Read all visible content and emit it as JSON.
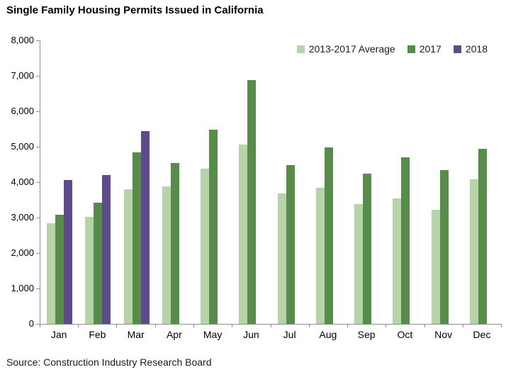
{
  "title": "Single Family Housing Permits Issued in California",
  "source_note": "Source: Construction Industry Research Board",
  "colors": {
    "axis": "#8F8F8F",
    "series_average": "#B5D5A9",
    "series_2017": "#588C4A",
    "series_2018": "#5E4B8B"
  },
  "chart_data": {
    "type": "bar",
    "title": "Single Family Housing Permits Issued in California",
    "categories": [
      "Jan",
      "Feb",
      "Mar",
      "Apr",
      "May",
      "Jun",
      "Jul",
      "Aug",
      "Sep",
      "Oct",
      "Nov",
      "Dec"
    ],
    "series": [
      {
        "name": "2013-2017 Average",
        "color": "#B5D5A9",
        "values": [
          2850,
          3030,
          3810,
          3880,
          4380,
          5060,
          3690,
          3850,
          3380,
          3550,
          3230,
          4080
        ]
      },
      {
        "name": "2017",
        "color": "#588C4A",
        "values": [
          3090,
          3430,
          4850,
          4540,
          5480,
          6880,
          4480,
          4980,
          4240,
          4700,
          4350,
          4940
        ]
      },
      {
        "name": "2018",
        "color": "#5E4B8B",
        "values": [
          4060,
          4210,
          5450,
          null,
          null,
          null,
          null,
          null,
          null,
          null,
          null,
          null
        ]
      }
    ],
    "xlabel": "",
    "ylabel": "",
    "ylim": [
      0,
      8000
    ],
    "yticks": [
      {
        "value": 0,
        "label": "0"
      },
      {
        "value": 1000,
        "label": "1,000"
      },
      {
        "value": 2000,
        "label": "2,000"
      },
      {
        "value": 3000,
        "label": "3,000"
      },
      {
        "value": 4000,
        "label": "4,000"
      },
      {
        "value": 5000,
        "label": "5,000"
      },
      {
        "value": 6000,
        "label": "6,000"
      },
      {
        "value": 7000,
        "label": "7,000"
      },
      {
        "value": 8000,
        "label": "8,000"
      }
    ],
    "grid": false,
    "legend_position": "top-right"
  }
}
